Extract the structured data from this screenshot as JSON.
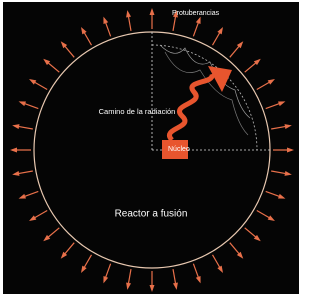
{
  "labels": {
    "prominences": "Protuberancias",
    "radiation_path": "Camino de la radiación",
    "core": "Núcleo",
    "title": "Reactor a fusión"
  }
}
